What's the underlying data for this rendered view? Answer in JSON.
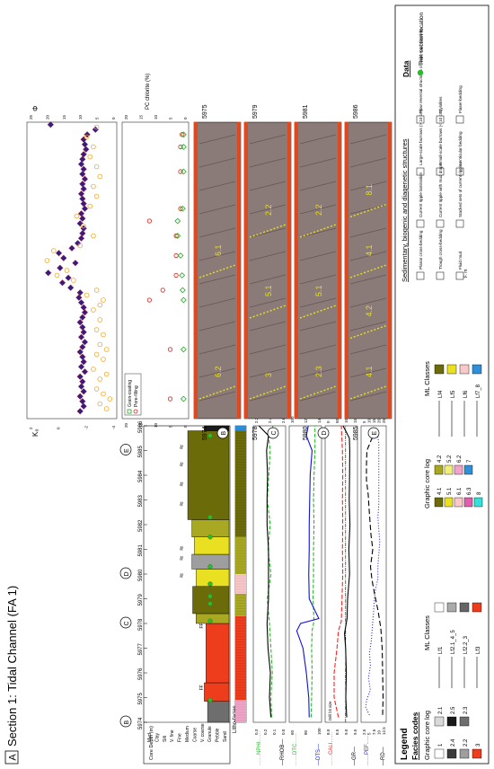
{
  "figure": {
    "panel_letter": "A",
    "title": "Section 1: Tidal Channel (FA 1)"
  },
  "core_log": {
    "depth_header": "Core Depth (m)",
    "depths": [
      "5974",
      "5975",
      "5976",
      "5977",
      "5978",
      "5979",
      "5980",
      "5981",
      "5982",
      "5983",
      "5984",
      "5985",
      "5986"
    ],
    "grain_size_labels": [
      "Mud",
      "Clay",
      "Silt",
      "V. fine",
      "Fine",
      "Medium",
      "Coarse",
      "V. coarse",
      "Granule",
      "Pebble",
      "Sand"
    ],
    "markers": [
      "B",
      "C",
      "D",
      "E"
    ],
    "litho_label": "Litho-facies",
    "segments": [
      {
        "from": 5974.0,
        "to": 5974.85,
        "code": "2.3",
        "width": 0.26
      },
      {
        "from": 5974.85,
        "to": 5975.6,
        "code": "3",
        "width": 0.3
      },
      {
        "from": 5975.6,
        "to": 5978.0,
        "code": "3",
        "width": 0.28
      },
      {
        "from": 5978.0,
        "to": 5978.4,
        "code": "4.2",
        "width": 0.4
      },
      {
        "from": 5978.4,
        "to": 5979.5,
        "code": "4.1",
        "width": 0.44
      },
      {
        "from": 5979.5,
        "to": 5980.2,
        "code": "5.1",
        "width": 0.4
      },
      {
        "from": 5980.2,
        "to": 5980.8,
        "code": "2.2",
        "width": 0.45
      },
      {
        "from": 5980.8,
        "to": 5981.5,
        "code": "5.1",
        "width": 0.42
      },
      {
        "from": 5981.5,
        "to": 5982.2,
        "code": "4.2",
        "width": 0.45
      },
      {
        "from": 5982.2,
        "to": 5985.8,
        "code": "4.1",
        "width": 0.5
      },
      {
        "from": 5985.8,
        "to": 5986.0,
        "code": "2.5",
        "width": 0.3
      }
    ],
    "litho_segments": [
      {
        "from": 5974.0,
        "to": 5974.9,
        "code": "6.2"
      },
      {
        "from": 5974.9,
        "to": 5978.3,
        "code": "3"
      },
      {
        "from": 5978.3,
        "to": 5979.2,
        "code": "4.2"
      },
      {
        "from": 5979.2,
        "to": 5980.0,
        "code": "6.1"
      },
      {
        "from": 5980.0,
        "to": 5981.5,
        "code": "4.2"
      },
      {
        "from": 5981.5,
        "to": 5985.8,
        "code": "4.1"
      },
      {
        "from": 5985.8,
        "to": 5986.0,
        "code": "7"
      }
    ]
  },
  "tracks": {
    "track1": {
      "axis_top": "NPHI",
      "axis_top_ticks": [
        "0.3",
        "0.2",
        "0.1",
        "0.0"
      ],
      "axis_bottom": "RHOB",
      "axis_bottom_ticks": [
        "2.2",
        "2.4",
        "2.6"
      ]
    },
    "track2": {
      "axis_top": "DTC",
      "axis_top_ticks": [
        "60",
        "80",
        "100"
      ],
      "axis_bottom": "DTS",
      "axis_bottom_ticks": [
        "100",
        "120",
        "140"
      ]
    },
    "track3": {
      "axis_top": "CALI",
      "axis_top_ticks": [
        "8.0",
        "8.5",
        "9.0",
        "9.5"
      ],
      "bit_size_label": "Drill bit size",
      "axis_bottom": "GR",
      "axis_bottom_ticks": [
        "0",
        "50",
        "100",
        "150"
      ]
    },
    "track4": {
      "axis_top": "PEF",
      "axis_top_ticks": [
        "2.5",
        "5",
        "7.5",
        "10",
        "12.5"
      ],
      "axis_bottom": "RD",
      "axis_bottom_ticks": [
        "5",
        "10",
        "15",
        "20",
        "25"
      ]
    },
    "track5": {
      "axis_top": "K",
      "axis_top_sub": "CCA",
      "axis_top_ticks": [
        "-4",
        "-2",
        "0",
        "2"
      ],
      "axis_bottom": "Φ",
      "axis_bottom_sub": "CCA",
      "axis_bottom_ticks": [
        "0",
        "5",
        "10",
        "15",
        "20",
        "25"
      ]
    },
    "track6": {
      "axis_top_ticks": [
        "0",
        "5",
        "10",
        "15",
        "20"
      ],
      "axis_bottom": "PC chlorite (%)",
      "axis_bottom_ticks": [
        "0",
        "5",
        "10",
        "15",
        "20"
      ],
      "legend": [
        "Grain-coating",
        "Pore-filling"
      ]
    }
  },
  "chart_data": [
    {
      "type": "line",
      "track": "NPHI",
      "color": "#22bb22",
      "x": [
        5974.2,
        5975,
        5976,
        5977,
        5978,
        5979,
        5980,
        5981,
        5982,
        5983,
        5984,
        5985,
        5985.5,
        5986
      ],
      "y": [
        0.18,
        0.17,
        0.19,
        0.17,
        0.15,
        0.12,
        0.17,
        0.13,
        0.16,
        0.12,
        0.14,
        0.16,
        0.14,
        0.2
      ]
    },
    {
      "type": "line",
      "track": "RHOB",
      "color": "#000000",
      "x": [
        5974.2,
        5975,
        5976,
        5977,
        5978,
        5979,
        5980,
        5981,
        5982,
        5983,
        5984,
        5985,
        5985.6,
        5986
      ],
      "y": [
        2.47,
        2.5,
        2.48,
        2.53,
        2.55,
        2.52,
        2.52,
        2.52,
        2.55,
        2.55,
        2.54,
        2.56,
        2.52,
        2.72
      ]
    },
    {
      "type": "line",
      "track": "DTC",
      "color": "#22bb22",
      "x": [
        5974.2,
        5975,
        5976,
        5977,
        5977.7,
        5978.1,
        5979,
        5980,
        5981,
        5982,
        5983,
        5984,
        5985,
        5986
      ],
      "y": [
        68,
        67,
        66,
        67,
        66,
        62,
        64,
        63,
        63,
        62,
        63,
        62,
        60,
        60
      ]
    },
    {
      "type": "line",
      "track": "DTS",
      "color": "#1111dd",
      "x": [
        5974.2,
        5975,
        5976,
        5977,
        5977.7,
        5978,
        5978.2,
        5979,
        5980,
        5981,
        5982,
        5983,
        5984,
        5985,
        5985.6,
        5986
      ],
      "y": [
        112,
        113,
        118,
        125,
        138,
        130,
        92,
        112,
        113,
        112,
        112,
        111,
        110,
        106,
        118,
        114
      ]
    },
    {
      "type": "line",
      "track": "CALI",
      "color": "#ff2222",
      "x": [
        5974.2,
        5975,
        5976,
        5977,
        5977.7,
        5978.1,
        5979,
        5980,
        5981,
        5982,
        5983,
        5984,
        5985,
        5986
      ],
      "y": [
        9.0,
        9.3,
        9.3,
        9.1,
        9.0,
        8.8,
        8.75,
        8.7,
        8.72,
        8.7,
        8.72,
        8.7,
        8.72,
        8.8
      ]
    },
    {
      "type": "line",
      "track": "GR",
      "color": "#000000",
      "x": [
        5974.2,
        5975,
        5976,
        5977,
        5977.6,
        5978.2,
        5979,
        5980,
        5981,
        5982,
        5983,
        5984,
        5985,
        5985.5,
        5986
      ],
      "y": [
        50,
        55,
        52,
        56,
        62,
        48,
        45,
        34,
        38,
        32,
        36,
        34,
        33,
        35,
        70
      ]
    },
    {
      "type": "line",
      "track": "PEF",
      "color": "#1a1aff",
      "x": [
        5974.3,
        5974.6,
        5974.9,
        5975.3,
        5975.8,
        5976.3,
        5976.8,
        5977.3,
        5977.8,
        5978.3,
        5978.8,
        5979.3,
        5979.8,
        5980.3,
        5980.8,
        5981.3,
        5981.8,
        5982.3,
        5982.8,
        5983.3,
        5983.8,
        5984.3,
        5984.8,
        5985.3,
        5985.8
      ],
      "y": [
        10.5,
        12.5,
        12,
        10,
        11,
        10,
        10.5,
        9.5,
        9,
        8.5,
        8,
        7.5,
        6,
        6,
        5.5,
        5,
        5.5,
        6,
        5.5,
        5.5,
        5.5,
        5.5,
        5.5,
        5.5,
        6.5
      ]
    },
    {
      "type": "line",
      "track": "RD",
      "color": "#000000",
      "x": [
        5974.3,
        5975,
        5976,
        5977,
        5977.8,
        5978.5,
        5979.2,
        5979.8,
        5980.3,
        5981,
        5981.6,
        5982.1,
        5982.6,
        5983.2,
        5983.8,
        5984.4,
        5985,
        5985.4,
        5985.7
      ],
      "y": [
        5,
        4.5,
        5,
        5.5,
        7,
        10,
        14,
        17,
        18.5,
        16,
        18,
        19,
        20,
        21,
        23,
        23,
        22.5,
        18,
        14
      ]
    },
    {
      "type": "scatter",
      "track": "K_CCA",
      "color": "#3b1a80",
      "x": [
        5974.3,
        5974.5,
        5974.7,
        5974.9,
        5975.1,
        5975.3,
        5975.5,
        5975.7,
        5975.9,
        5976.1,
        5976.3,
        5976.5,
        5976.7,
        5976.9,
        5977.1,
        5977.3,
        5977.5,
        5977.7,
        5977.9,
        5978.1,
        5978.3,
        5978.5,
        5978.7,
        5978.9,
        5979.1,
        5979.3,
        5979.5,
        5979.7,
        5979.9,
        5980.1,
        5980.3,
        5980.5,
        5980.7,
        5980.9,
        5981.1,
        5981.3,
        5981.5,
        5981.7,
        5981.9,
        5982.1,
        5982.3,
        5982.5,
        5982.7,
        5982.9,
        5983.1,
        5983.3,
        5983.5,
        5983.7,
        5983.9,
        5984.1,
        5984.3,
        5984.5,
        5984.7,
        5984.9,
        5985.1,
        5985.3,
        5985.5,
        5985.7,
        5985.9
      ],
      "y": [
        -1.2,
        -1.5,
        -1.4,
        -1.2,
        -1.5,
        -1.3,
        -1.4,
        -1.2,
        -1.6,
        -1.3,
        -1.5,
        -1.4,
        -1.2,
        -1.4,
        -1.6,
        -1.3,
        -1.5,
        -1.4,
        -1.2,
        -1.4,
        -1.6,
        -1.5,
        -1.3,
        -1.1,
        -1.2,
        -0.4,
        0.3,
        -0.2,
        1.5,
        0.5,
        -0.8,
        0.2,
        0.6,
        -0.5,
        -1.0,
        -1.3,
        -1.4,
        -1.5,
        -1.2,
        -1.4,
        -1.3,
        -1.6,
        -1.5,
        -1.4,
        -1.3,
        -1.5,
        -1.4,
        -1.6,
        -1.4,
        -1.5,
        -1.3,
        -1.4,
        -1.5,
        -1.7,
        -1.6,
        -1.5,
        -1.8,
        -2.5,
        1.3
      ]
    },
    {
      "type": "scatter",
      "track": "PHI_CCA",
      "color": "#f5a623",
      "x": [
        5974.4,
        5974.6,
        5974.8,
        5975.0,
        5975.2,
        5975.6,
        5975.8,
        5976.0,
        5976.4,
        5976.6,
        5976.8,
        5977.0,
        5977.4,
        5977.6,
        5978.0,
        5978.4,
        5978.6,
        5978.8,
        5979.0,
        5979.2,
        5979.6,
        5979.8,
        5980.0,
        5980.4,
        5980.8,
        5981.0,
        5981.4,
        5981.8,
        5982.2,
        5982.6,
        5983.0,
        5983.4,
        5983.8,
        5984.2,
        5984.6,
        5985.0,
        5985.4,
        5985.8
      ],
      "y": [
        2,
        4,
        1,
        3,
        5,
        4,
        2,
        6,
        3,
        5,
        2,
        4,
        3,
        5,
        4,
        6,
        4,
        3,
        8,
        5,
        12,
        17,
        14,
        20,
        18,
        10,
        6,
        9,
        11,
        7,
        5,
        6,
        4,
        5,
        7,
        6,
        8,
        5
      ]
    },
    {
      "type": "scatter",
      "track": "PC_chlorite_pore_filling",
      "color": "#dd2222",
      "x": [
        5974.8,
        5976.8,
        5978.8,
        5979.2,
        5979.8,
        5980.6,
        5981.4,
        5982.0,
        5982.5,
        5984.0,
        5985.0,
        5985.5
      ],
      "y": [
        5,
        5,
        12,
        7.5,
        3,
        3,
        3,
        12,
        1.5,
        1.5,
        1.5,
        1
      ]
    },
    {
      "type": "scatter",
      "track": "PC_chlorite_grain_coating",
      "color": "#22aa22",
      "x": [
        5974.8,
        5976.8,
        5978.8,
        5979.2,
        5979.8,
        5980.6,
        5981.4,
        5982.0,
        5982.5,
        5984.0,
        5985.0,
        5985.5
      ],
      "y": [
        0.5,
        0.5,
        0.5,
        0.8,
        1,
        1.5,
        2.5,
        2.5,
        0.8,
        0.5,
        0.5,
        0.5
      ]
    }
  ],
  "core_photos": {
    "panels": [
      {
        "letter": "B",
        "depth_start": "5974",
        "depth_end": "5975",
        "facies_labels": [
          "6.2",
          "6.1"
        ]
      },
      {
        "letter": "C",
        "depth_start": "5978",
        "depth_end": "5979",
        "facies_labels": [
          "3",
          "5.1",
          "2.2"
        ]
      },
      {
        "letter": "D",
        "depth_start": "5980",
        "depth_end": "5981",
        "facies_labels": [
          "2.3",
          "5.1",
          "2.2"
        ]
      },
      {
        "letter": "E",
        "depth_start": "5985",
        "depth_end": "5986",
        "facies_labels": [
          "4.1",
          "4.2",
          "4.1",
          "8.1"
        ]
      }
    ]
  },
  "legend": {
    "title": "Legend",
    "facies_codes_title": "Facies codes",
    "graphic_core_log_title": "Graphic core log",
    "ml_classes_title": "ML Classes",
    "group1": {
      "codes": [
        "1",
        "2.1",
        "2.4",
        "2.5",
        "2.2",
        "2.3",
        "3"
      ],
      "classes": [
        "Lf1",
        "Lf2.1_4_5",
        "Lf2.2_3",
        "Lf3"
      ]
    },
    "group2": {
      "codes": [
        "4.1",
        "4.2",
        "5.1",
        "5.2",
        "6.1",
        "6.2",
        "6.3",
        "7",
        "8"
      ],
      "classes": [
        "Lf4",
        "Lf5",
        "Lf6",
        "Lf7_8"
      ]
    },
    "structures_title": "Sedimentary, biogenic and diagenetic structures",
    "structures": [
      "Planar cross-bedding",
      "Trough cross-bedding",
      "Fluid mud",
      "Current ripple lamination",
      "Current ripple with mud drape",
      "Stacked sets of current ripples",
      "Large-scale burrows (> 10 cm)",
      "Small-scale burrows (< 10 cm)",
      "Lenticular bedding",
      "Flow reversal structures or sand-mud couplets",
      "Stylolites",
      "Flaser-bedding"
    ],
    "fm_symbol": "F. m",
    "data_title": "Data",
    "data_items": [
      "Thin section location"
    ]
  },
  "colors": {
    "red_facies": "#ee3d1c",
    "olive_facies": "#7a7a0a",
    "yellow_facies": "#e8e020",
    "green_marker": "#2eb82e"
  }
}
